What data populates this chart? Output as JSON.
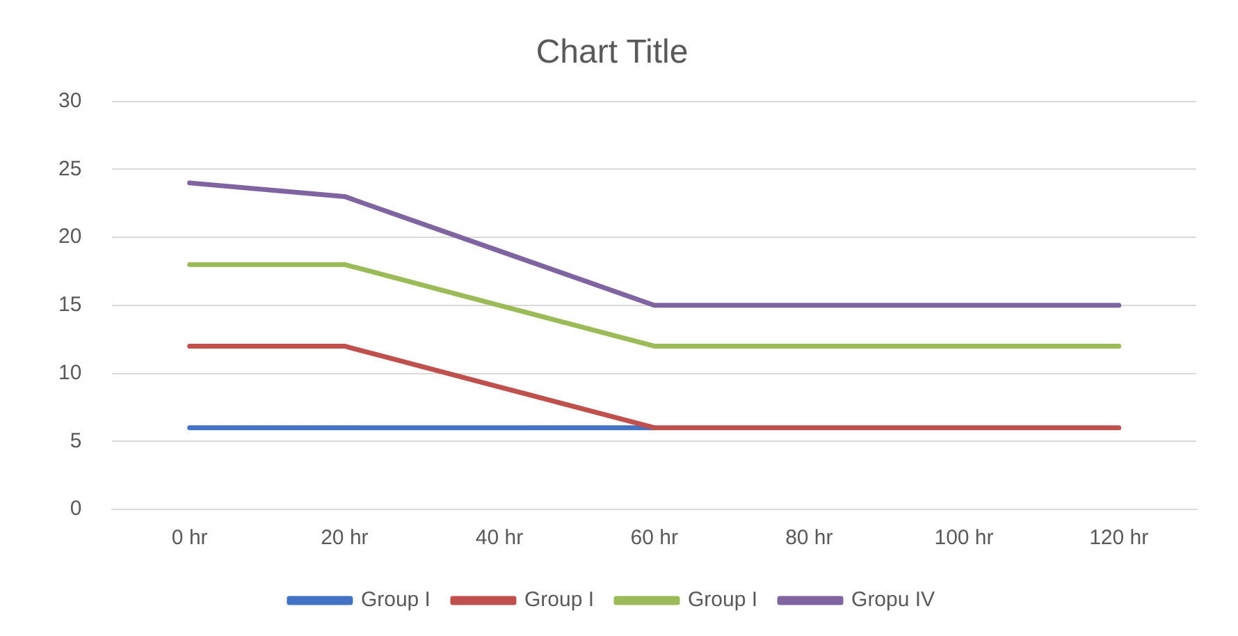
{
  "chart_data": {
    "type": "line",
    "title": "Chart Title",
    "categories": [
      "0 hr",
      "20 hr",
      "40 hr",
      "60 hr",
      "80 hr",
      "100 hr",
      "120 hr"
    ],
    "series": [
      {
        "name": "Group I",
        "color": "#4472c4",
        "values": [
          6,
          6,
          6,
          6,
          null,
          null,
          null
        ]
      },
      {
        "name": "Group I",
        "color": "#c0504d",
        "values": [
          12,
          12,
          9,
          6,
          6,
          6,
          6
        ]
      },
      {
        "name": "Group I",
        "color": "#9bbb59",
        "values": [
          18,
          18,
          15,
          12,
          12,
          12,
          12
        ]
      },
      {
        "name": "Gropu IV",
        "color": "#8064a2",
        "values": [
          24,
          23,
          19,
          15,
          15,
          15,
          15
        ]
      }
    ],
    "ylim": [
      0,
      30
    ],
    "yticks": [
      0,
      5,
      10,
      15,
      20,
      25,
      30
    ],
    "grid": "y",
    "legend": "bottom",
    "marker": "none",
    "line_style": "solid"
  }
}
